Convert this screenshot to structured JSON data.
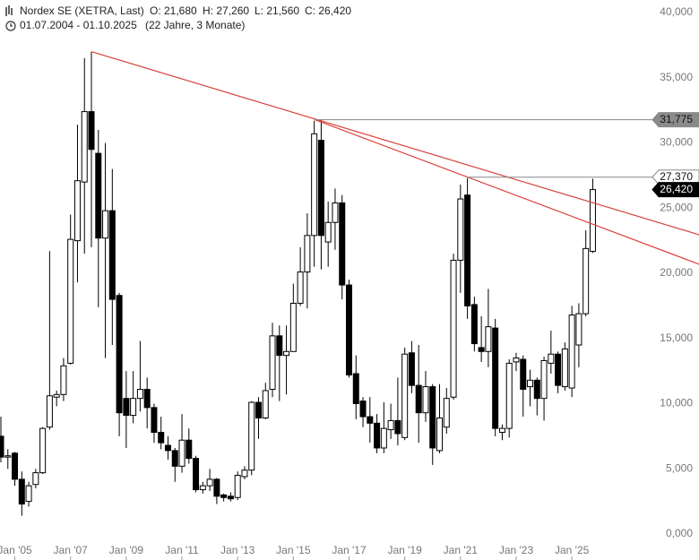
{
  "chart_data": {
    "type": "candlestick",
    "title": "Nordex SE (XETRA, Last)",
    "ohlc_labels": [
      "O: 21,680",
      "H: 27,260",
      "L: 21,560",
      "C: 26,420"
    ],
    "date_range": "01.07.2004 - 01.10.2025",
    "duration": "(22 Jahre, 3 Monate)",
    "categories": [
      null,
      null,
      "Jan '05",
      null,
      null,
      null,
      null,
      null,
      null,
      null,
      "Jan '07",
      null,
      null,
      null,
      null,
      null,
      null,
      null,
      "Jan '09",
      null,
      null,
      null,
      null,
      null,
      null,
      null,
      "Jan '11",
      null,
      null,
      null,
      null,
      null,
      null,
      null,
      "Jan '13",
      null,
      null,
      null,
      null,
      null,
      null,
      null,
      "Jan '15",
      null,
      null,
      null,
      null,
      null,
      null,
      null,
      "Jan '17",
      null,
      null,
      null,
      null,
      null,
      null,
      null,
      "Jan '19",
      null,
      null,
      null,
      null,
      null,
      null,
      null,
      "Jan '21",
      null,
      null,
      null,
      null,
      null,
      null,
      null,
      "Jan '23",
      null,
      null,
      null,
      null,
      null,
      null,
      null,
      "Jan '25",
      null,
      null,
      null
    ],
    "open": [
      7500,
      5900,
      6200,
      4200,
      2500,
      3800,
      4700,
      8200,
      10500,
      10700,
      13100,
      22500,
      27000,
      32400,
      29200,
      22700,
      24800,
      18300,
      10400,
      9100,
      10400,
      11100,
      9700,
      7800,
      6800,
      6400,
      5200,
      7200,
      5800,
      3400,
      3700,
      4200,
      3000,
      2900,
      2800,
      4400,
      4900,
      10100,
      8900,
      11100,
      15200,
      13700,
      14000,
      17700,
      20100,
      22900,
      30200,
      22400,
      23900,
      25400,
      19100,
      12300,
      10200,
      9000,
      8500,
      6600,
      8000,
      8700,
      7400,
      13900,
      11400,
      9300,
      11300,
      6400,
      8200,
      10500,
      21000,
      26000,
      17600,
      14300,
      14000,
      15800,
      7800,
      8100,
      13200,
      13400,
      11300,
      11800,
      10400,
      13100,
      13800,
      11300,
      11200,
      14500,
      16900,
      21680
    ],
    "high": [
      9000,
      6500,
      6300,
      4800,
      4000,
      5000,
      8200,
      21700,
      11000,
      13500,
      24500,
      31400,
      36500,
      37000,
      31000,
      30000,
      28000,
      18500,
      12500,
      12500,
      14800,
      12000,
      10000,
      9000,
      7500,
      6600,
      9200,
      8100,
      6000,
      4000,
      5000,
      4300,
      3100,
      3200,
      4800,
      5200,
      10200,
      10500,
      11600,
      16200,
      16000,
      16000,
      19200,
      22000,
      24600,
      31700,
      31800,
      25500,
      26500,
      26000,
      19500,
      13700,
      10500,
      10500,
      9200,
      10100,
      10000,
      12000,
      14300,
      14800,
      14500,
      12500,
      11500,
      11500,
      11200,
      21500,
      26800,
      27300,
      18200,
      16700,
      18800,
      16500,
      8400,
      13400,
      13900,
      13700,
      12600,
      12000,
      13600,
      15600,
      14000,
      14700,
      17500,
      17700,
      23300,
      27260
    ],
    "low": [
      5500,
      5000,
      3700,
      1400,
      2100,
      3500,
      4600,
      8000,
      9800,
      10200,
      13000,
      19300,
      21500,
      22000,
      17400,
      13500,
      14500,
      7500,
      6600,
      8500,
      9400,
      8100,
      7000,
      6500,
      5700,
      4000,
      4700,
      5400,
      3200,
      3100,
      3300,
      2300,
      2500,
      2500,
      2600,
      4200,
      4500,
      7300,
      8800,
      10500,
      10200,
      10700,
      14000,
      17500,
      17300,
      20500,
      20300,
      20500,
      21800,
      18000,
      12000,
      8800,
      8200,
      7000,
      6200,
      6200,
      7300,
      6800,
      7200,
      10800,
      7000,
      8600,
      5300,
      6200,
      7700,
      10300,
      18500,
      16500,
      14000,
      13200,
      12800,
      7500,
      7200,
      7400,
      12500,
      9000,
      9800,
      9100,
      8700,
      12300,
      10800,
      11000,
      10500,
      12800,
      16700,
      21560
    ],
    "close": [
      5900,
      6000,
      4200,
      2300,
      3700,
      4700,
      8100,
      10600,
      10700,
      12900,
      22600,
      27100,
      32400,
      29500,
      22700,
      24800,
      18000,
      9300,
      9100,
      10400,
      11100,
      9700,
      7800,
      7000,
      6400,
      5200,
      7200,
      5800,
      3400,
      3700,
      4200,
      2900,
      2800,
      2700,
      4500,
      4900,
      10100,
      8900,
      11000,
      15200,
      13700,
      14000,
      17700,
      20100,
      22900,
      30700,
      22900,
      23900,
      25400,
      19100,
      12200,
      10000,
      9000,
      8500,
      6600,
      8100,
      8700,
      7700,
      13800,
      11400,
      9300,
      11300,
      6600,
      8900,
      10400,
      21000,
      25700,
      17500,
      14600,
      14000,
      15900,
      8100,
      8100,
      13100,
      13500,
      11100,
      11800,
      10400,
      13300,
      13800,
      11400,
      14200,
      16800,
      16900,
      21900,
      26420
    ],
    "up_color": "#ffffff",
    "down_color": "#000000",
    "ylim": [
      0,
      40000
    ],
    "yticks": [
      {
        "value": 0,
        "label": "0,000"
      },
      {
        "value": 5000,
        "label": "5,000"
      },
      {
        "value": 10000,
        "label": "10,000"
      },
      {
        "value": 15000,
        "label": "15,000"
      },
      {
        "value": 20000,
        "label": "20,000"
      },
      {
        "value": 25000,
        "label": "25,000"
      },
      {
        "value": 30000,
        "label": "30,000"
      },
      {
        "value": 35000,
        "label": "35,000"
      },
      {
        "value": 40000,
        "label": "40,000"
      }
    ],
    "levels": [
      {
        "value": 31775,
        "label": "31,775",
        "start": 45
      },
      {
        "value": 27370,
        "label": "27,370",
        "start": 67
      }
    ],
    "trendlines": [
      {
        "x": [
          13,
          100.3
        ],
        "values": [
          37000,
          22950
        ],
        "color": "#d9413b"
      },
      {
        "x": [
          45,
          100.3
        ],
        "values": [
          31800,
          20690
        ],
        "color": "#d9413b"
      }
    ],
    "last_price": {
      "value": 26420,
      "label": "26,420"
    }
  }
}
